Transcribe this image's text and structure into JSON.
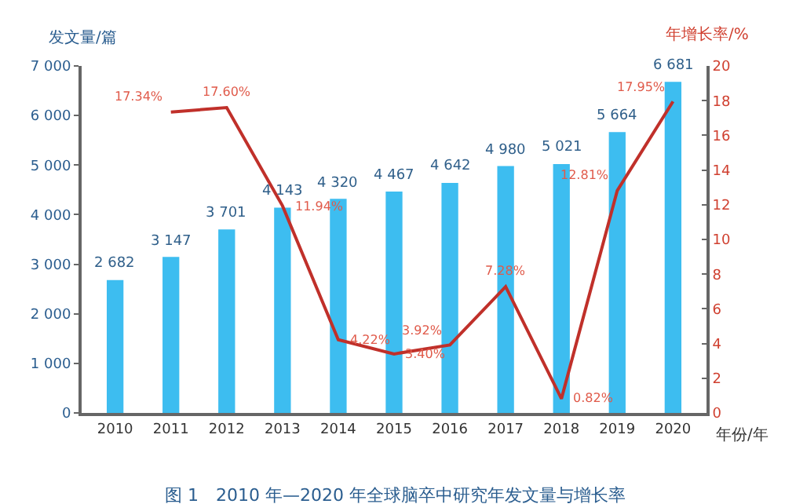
{
  "chart_data": {
    "type": "bar",
    "categories": [
      "2010",
      "2011",
      "2012",
      "2013",
      "2014",
      "2015",
      "2016",
      "2017",
      "2018",
      "2019",
      "2020"
    ],
    "xlabel": "年份/年",
    "ylabel": "发文量/篇",
    "y2label": "年增长率/%",
    "series": [
      {
        "color": "#3dbdf0",
        "values": [
          2682,
          3147,
          3701,
          4143,
          4320,
          4467,
          4642,
          4980,
          5021,
          5664,
          6681
        ],
        "value_labels": [
          "2 682",
          "3 147",
          "3 701",
          "4 143",
          "4 320",
          "4 467",
          "4 642",
          "4 980",
          "5 021",
          "5 664",
          "6 681"
        ]
      },
      {
        "type": "line",
        "axis": "y2",
        "color": "#c0302a",
        "values": [
          null,
          17.34,
          17.6,
          11.94,
          4.22,
          3.4,
          3.92,
          7.28,
          0.82,
          12.81,
          17.95
        ],
        "value_labels": [
          null,
          "17.34%",
          "17.60%",
          "11.94%",
          "4.22%",
          "3.40%",
          "3.92%",
          "7.28%",
          "0.82%",
          "12.81%",
          "17.95%"
        ]
      }
    ],
    "ylim": [
      0,
      7000
    ],
    "yticks": [
      0,
      {
        "value": 1000,
        "label": "1 000"
      },
      {
        "value": 2000,
        "label": "2 000"
      },
      {
        "value": 3000,
        "label": "3 000"
      },
      {
        "value": 4000,
        "label": "4 000"
      },
      {
        "value": 5000,
        "label": "5 000"
      },
      {
        "value": 6000,
        "label": "6 000"
      },
      {
        "value": 7000,
        "label": "7 000"
      }
    ],
    "y2lim": [
      0,
      20
    ],
    "y2ticks": [
      0,
      2,
      4,
      6,
      8,
      10,
      12,
      14,
      16,
      18,
      20
    ],
    "grid": false,
    "legend": false,
    "annotations": [
      "图 1　2010 年—2020 年全球脑卒中研究年发文量与增长率"
    ]
  }
}
